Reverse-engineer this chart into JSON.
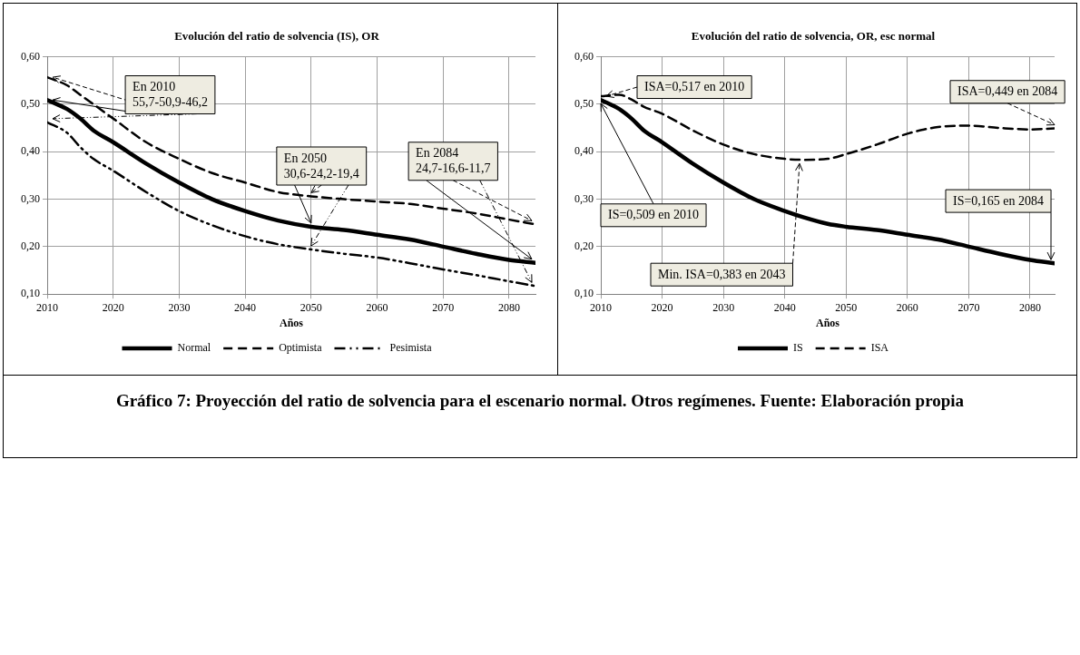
{
  "chart_data": [
    {
      "type": "line",
      "title": "Evolución del ratio de solvencia (IS), OR",
      "xlabel": "Años",
      "x": [
        2010,
        2013,
        2015,
        2017,
        2020,
        2025,
        2030,
        2035,
        2040,
        2045,
        2050,
        2055,
        2060,
        2065,
        2070,
        2075,
        2080,
        2084
      ],
      "series": [
        {
          "name": "Normal",
          "color": "#000000",
          "line_style": "solid",
          "values": [
            0.509,
            0.49,
            0.47,
            0.445,
            0.42,
            0.375,
            0.335,
            0.3,
            0.275,
            0.255,
            0.242,
            0.235,
            0.225,
            0.215,
            0.2,
            0.185,
            0.172,
            0.166
          ]
        },
        {
          "name": "Optimista",
          "color": "#000000",
          "line_style": "dashed",
          "values": [
            0.557,
            0.54,
            0.52,
            0.5,
            0.47,
            0.42,
            0.385,
            0.355,
            0.335,
            0.315,
            0.306,
            0.3,
            0.295,
            0.29,
            0.28,
            0.27,
            0.257,
            0.247
          ]
        },
        {
          "name": "Pesimista",
          "color": "#000000",
          "line_style": "dashdot",
          "values": [
            0.462,
            0.44,
            0.41,
            0.385,
            0.36,
            0.315,
            0.275,
            0.245,
            0.222,
            0.205,
            0.194,
            0.185,
            0.177,
            0.165,
            0.152,
            0.14,
            0.127,
            0.117
          ]
        }
      ],
      "xlim": [
        2010,
        2084
      ],
      "xticks": [
        2010,
        2020,
        2030,
        2040,
        2050,
        2060,
        2070,
        2080
      ],
      "ylim": [
        0.1,
        0.6
      ],
      "yticks": [
        {
          "value": 0.1,
          "label": "0,10"
        },
        {
          "value": 0.2,
          "label": "0,20"
        },
        {
          "value": 0.3,
          "label": "0,30"
        },
        {
          "value": 0.4,
          "label": "0,40"
        },
        {
          "value": 0.5,
          "label": "0,50"
        },
        {
          "value": 0.6,
          "label": "0,60"
        }
      ],
      "grid": true,
      "legend": "bottom",
      "marker": "none",
      "annotations": [
        {
          "text": "En 2010\n55,7-50,9-46,2",
          "x": 2010,
          "y": 0.509
        },
        {
          "text": "En 2050\n30,6-24,2-19,4",
          "x": 2050,
          "y": 0.242
        },
        {
          "text": "En 2084\n24,7-16,6-11,7",
          "x": 2084,
          "y": 0.166
        },
        "Gráfico 7: Proyección del ratio de solvencia para el escenario normal. Otros regímenes. Fuente: Elaboración propia"
      ]
    },
    {
      "type": "line",
      "title": "Evolución del ratio de solvencia, OR, esc normal",
      "xlabel": "Años",
      "x": [
        2010,
        2013,
        2015,
        2017,
        2020,
        2025,
        2030,
        2035,
        2040,
        2043,
        2047,
        2050,
        2055,
        2060,
        2065,
        2070,
        2075,
        2080,
        2084
      ],
      "series": [
        {
          "name": "IS",
          "color": "#000000",
          "line_style": "solid",
          "values": [
            0.509,
            0.49,
            0.47,
            0.445,
            0.42,
            0.375,
            0.335,
            0.3,
            0.275,
            0.262,
            0.248,
            0.242,
            0.235,
            0.225,
            0.215,
            0.2,
            0.185,
            0.172,
            0.165
          ]
        },
        {
          "name": "ISA",
          "color": "#000000",
          "line_style": "dashed",
          "values": [
            0.517,
            0.52,
            0.51,
            0.495,
            0.48,
            0.445,
            0.415,
            0.395,
            0.385,
            0.383,
            0.385,
            0.395,
            0.415,
            0.438,
            0.452,
            0.455,
            0.45,
            0.447,
            0.449
          ]
        }
      ],
      "xlim": [
        2010,
        2084
      ],
      "xticks": [
        2010,
        2020,
        2030,
        2040,
        2050,
        2060,
        2070,
        2080
      ],
      "ylim": [
        0.1,
        0.6
      ],
      "yticks": [
        {
          "value": 0.1,
          "label": "0,10"
        },
        {
          "value": 0.2,
          "label": "0,20"
        },
        {
          "value": 0.3,
          "label": "0,30"
        },
        {
          "value": 0.4,
          "label": "0,40"
        },
        {
          "value": 0.5,
          "label": "0,50"
        },
        {
          "value": 0.6,
          "label": "0,60"
        }
      ],
      "grid": true,
      "legend": "bottom",
      "marker": "none",
      "annotations": [
        {
          "text": "ISA=0,517 en 2010",
          "x": 2010,
          "y": 0.517
        },
        {
          "text": "ISA=0,449 en 2084",
          "x": 2084,
          "y": 0.449
        },
        {
          "text": "Min. ISA=0,383 en 2043",
          "x": 2043,
          "y": 0.383
        },
        {
          "text": "IS=0,509 en 2010",
          "x": 2010,
          "y": 0.509
        },
        {
          "text": "IS=0,165 en 2084",
          "x": 2084,
          "y": 0.165
        }
      ]
    }
  ]
}
